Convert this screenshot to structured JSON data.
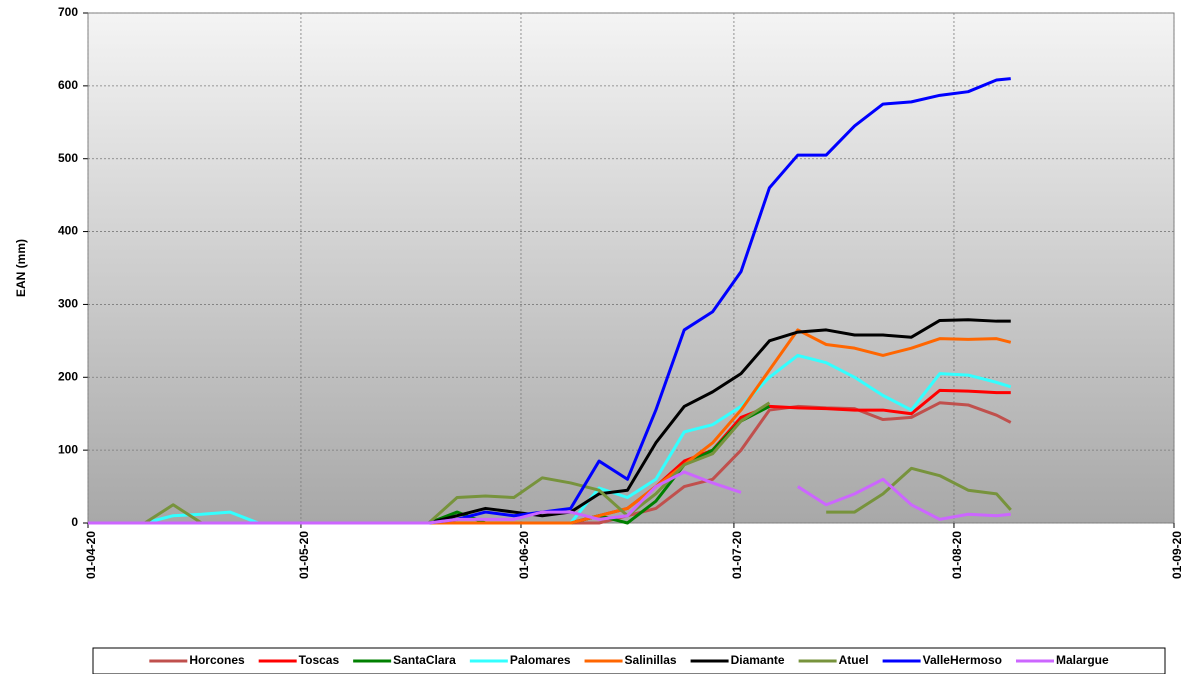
{
  "chart_data": {
    "type": "line",
    "y_label": "EAN (mm)",
    "x": [
      "01-04-20",
      "05-04-20",
      "09-04-20",
      "13-04-20",
      "17-04-20",
      "21-04-20",
      "25-04-20",
      "29-04-20",
      "03-05-20",
      "07-05-20",
      "11-05-20",
      "15-05-20",
      "19-05-20",
      "23-05-20",
      "27-05-20",
      "31-05-20",
      "04-06-20",
      "08-06-20",
      "12-06-20",
      "16-06-20",
      "20-06-20",
      "24-06-20",
      "28-06-20",
      "02-07-20",
      "06-07-20",
      "10-07-20",
      "14-07-20",
      "18-07-20",
      "22-07-20",
      "26-07-20",
      "30-07-20",
      "03-08-20",
      "07-08-20",
      "09-08-20"
    ],
    "xlim": [
      "01-04-20",
      "01-09-20"
    ],
    "xticks": [
      "01-04-20",
      "01-05-20",
      "01-06-20",
      "01-07-20",
      "01-08-20",
      "01-09-20"
    ],
    "ylim": [
      0,
      700
    ],
    "yticks": [
      0,
      100,
      200,
      300,
      400,
      500,
      600,
      700
    ],
    "grid": true,
    "series": [
      {
        "name": "Horcones",
        "color": "#c0504d",
        "values": [
          0,
          0,
          0,
          0,
          0,
          0,
          0,
          0,
          0,
          0,
          0,
          0,
          0,
          0,
          0,
          0,
          0,
          0,
          0,
          10,
          20,
          50,
          60,
          100,
          155,
          160,
          158,
          157,
          142,
          145,
          165,
          162,
          148,
          138
        ]
      },
      {
        "name": "Toscas",
        "color": "#ff0000",
        "values": [
          0,
          0,
          0,
          0,
          0,
          0,
          0,
          0,
          0,
          0,
          0,
          0,
          0,
          0,
          0,
          0,
          0,
          0,
          10,
          20,
          50,
          85,
          100,
          145,
          160,
          158,
          157,
          155,
          155,
          150,
          182,
          181,
          179,
          179
        ]
      },
      {
        "name": "SantaClara",
        "color": "#008000",
        "values": [
          0,
          0,
          0,
          0,
          0,
          0,
          0,
          0,
          0,
          0,
          0,
          0,
          0,
          15,
          0,
          0,
          0,
          0,
          10,
          0,
          30,
          80,
          100,
          140,
          160,
          null,
          null,
          null,
          null,
          null,
          null,
          null,
          null,
          null
        ]
      },
      {
        "name": "Palomares",
        "color": "#33ffff",
        "values": [
          0,
          0,
          0,
          10,
          12,
          15,
          0,
          0,
          0,
          0,
          0,
          0,
          0,
          0,
          0,
          0,
          0,
          0,
          48,
          35,
          60,
          125,
          135,
          160,
          200,
          230,
          220,
          200,
          175,
          155,
          205,
          203,
          193,
          187
        ]
      },
      {
        "name": "Salinillas",
        "color": "#ff6600",
        "values": [
          0,
          0,
          0,
          0,
          0,
          0,
          0,
          0,
          0,
          0,
          0,
          0,
          0,
          0,
          0,
          0,
          0,
          0,
          10,
          20,
          50,
          80,
          110,
          155,
          210,
          265,
          245,
          240,
          230,
          240,
          253,
          252,
          253,
          248
        ]
      },
      {
        "name": "Diamante",
        "color": "#000000",
        "values": [
          0,
          0,
          0,
          0,
          0,
          0,
          0,
          0,
          0,
          0,
          0,
          0,
          0,
          10,
          20,
          15,
          10,
          15,
          40,
          45,
          110,
          160,
          180,
          205,
          250,
          262,
          265,
          258,
          258,
          255,
          278,
          279,
          277,
          277
        ]
      },
      {
        "name": "Atuel",
        "color": "#77933c",
        "values": [
          0,
          0,
          0,
          25,
          0,
          0,
          0,
          0,
          0,
          0,
          0,
          0,
          0,
          35,
          37,
          35,
          62,
          55,
          45,
          10,
          40,
          80,
          95,
          140,
          165,
          null,
          15,
          15,
          40,
          75,
          65,
          45,
          40,
          18
        ]
      },
      {
        "name": "ValleHermoso",
        "color": "#0000ff",
        "values": [
          0,
          0,
          0,
          0,
          0,
          0,
          0,
          0,
          0,
          0,
          0,
          0,
          0,
          5,
          15,
          10,
          15,
          20,
          85,
          60,
          155,
          265,
          290,
          345,
          460,
          505,
          505,
          545,
          575,
          578,
          587,
          592,
          608,
          610
        ]
      },
      {
        "name": "Malargue",
        "color": "#cc66ff",
        "values": [
          0,
          0,
          0,
          0,
          0,
          0,
          0,
          0,
          0,
          0,
          0,
          0,
          0,
          5,
          5,
          5,
          15,
          15,
          5,
          10,
          50,
          70,
          55,
          42,
          null,
          50,
          25,
          40,
          60,
          25,
          5,
          12,
          10,
          12
        ]
      }
    ]
  }
}
